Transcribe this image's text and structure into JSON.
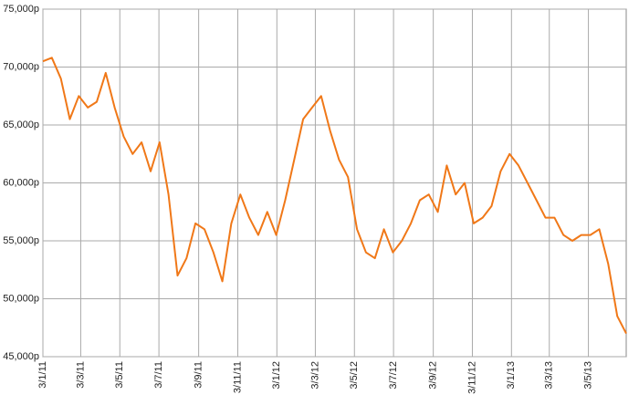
{
  "chart_data": {
    "type": "line",
    "x": [
      "3/1/11",
      "17/1/11",
      "31/1/11",
      "14/2/11",
      "28/2/11",
      "14/3/11",
      "28/3/11",
      "11/4/11",
      "25/4/11",
      "9/5/11",
      "23/5/11",
      "6/6/11",
      "20/6/11",
      "4/7/11",
      "18/7/11",
      "1/8/11",
      "15/8/11",
      "29/8/11",
      "12/9/11",
      "26/9/11",
      "10/10/11",
      "24/10/11",
      "7/11/11",
      "21/11/11",
      "5/12/11",
      "19/12/11",
      "2/1/12",
      "16/1/12",
      "30/1/12",
      "13/2/12",
      "27/2/12",
      "12/3/12",
      "26/3/12",
      "9/4/12",
      "23/4/12",
      "7/5/12",
      "21/5/12",
      "4/6/12",
      "18/6/12",
      "2/7/12",
      "16/7/12",
      "30/7/12",
      "13/8/12",
      "27/8/12",
      "10/9/12",
      "24/9/12",
      "8/10/12",
      "22/10/12",
      "5/11/12",
      "19/11/12",
      "3/12/12",
      "17/12/12",
      "31/12/12",
      "14/1/13",
      "28/1/13",
      "11/2/13",
      "25/2/13",
      "11/3/13",
      "25/3/13",
      "8/4/13",
      "22/4/13",
      "6/5/13",
      "20/5/13",
      "3/6/13",
      "17/6/13",
      "1/7/13"
    ],
    "series": [
      {
        "color": "#f07818",
        "values": [
          70500,
          70800,
          69000,
          65500,
          67500,
          66500,
          67000,
          69500,
          66500,
          64000,
          62500,
          63500,
          61000,
          63500,
          59000,
          52000,
          53500,
          56500,
          56000,
          54000,
          51500,
          56500,
          59000,
          57000,
          55500,
          57500,
          55500,
          58500,
          62000,
          65500,
          66500,
          67500,
          64500,
          62000,
          60500,
          56000,
          54000,
          53500,
          56000,
          54000,
          55000,
          56500,
          58500,
          59000,
          57500,
          61500,
          59000,
          60000,
          56500,
          57000,
          58000,
          61000,
          62500,
          61500,
          60000,
          58500,
          57000,
          57000,
          55500,
          55000,
          55500,
          55500,
          56000,
          53000,
          48500,
          47000
        ]
      }
    ],
    "xlim": [
      "3/1/11",
      "1/7/13"
    ],
    "xticks": [
      "3/1/11",
      "3/3/11",
      "3/5/11",
      "3/7/11",
      "3/9/11",
      "3/11/11",
      "3/1/12",
      "3/3/12",
      "3/5/12",
      "3/7/12",
      "3/9/12",
      "3/11/12",
      "3/1/13",
      "3/3/13",
      "3/5/13"
    ],
    "ylim": [
      45000,
      75000
    ],
    "yticks": [
      {
        "value": 45000,
        "label": "45,000p"
      },
      {
        "value": 50000,
        "label": "50,000p"
      },
      {
        "value": 55000,
        "label": "55,000p"
      },
      {
        "value": 60000,
        "label": "60,000p"
      },
      {
        "value": 65000,
        "label": "65,000p"
      },
      {
        "value": 70000,
        "label": "70,000p"
      },
      {
        "value": 75000,
        "label": "75,000p"
      }
    ],
    "grid": true
  }
}
